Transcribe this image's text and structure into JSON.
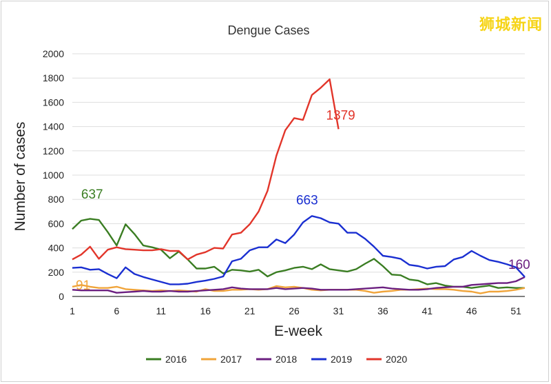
{
  "watermark": "狮城新闻",
  "chart_data": {
    "type": "line",
    "title": "Dengue Cases",
    "xlabel": "E-week",
    "ylabel": "Number of cases",
    "ylim": [
      0,
      2000
    ],
    "xlim": [
      1,
      52
    ],
    "yticks": [
      "0",
      "200",
      "400",
      "600",
      "800",
      "1000",
      "1200",
      "1400",
      "1600",
      "1800",
      "2000"
    ],
    "xticks": [
      "1",
      "6",
      "11",
      "16",
      "21",
      "26",
      "31",
      "36",
      "41",
      "46",
      "51"
    ],
    "grid": true,
    "legend_position": "bottom",
    "series": [
      {
        "name": "2016",
        "color": "#3a7d22",
        "values": [
          555,
          625,
          640,
          630,
          530,
          420,
          595,
          515,
          420,
          405,
          385,
          315,
          370,
          305,
          230,
          230,
          245,
          190,
          220,
          215,
          205,
          220,
          165,
          200,
          215,
          235,
          245,
          225,
          265,
          225,
          215,
          205,
          225,
          270,
          310,
          250,
          180,
          175,
          140,
          130,
          100,
          110,
          90,
          80,
          80,
          70,
          80,
          90,
          70,
          75,
          70,
          70
        ]
      },
      {
        "name": "2017",
        "color": "#f0a43a",
        "values": [
          80,
          95,
          80,
          70,
          70,
          80,
          60,
          55,
          50,
          45,
          50,
          45,
          50,
          45,
          40,
          60,
          45,
          45,
          55,
          55,
          60,
          55,
          60,
          85,
          75,
          80,
          70,
          55,
          50,
          55,
          55,
          55,
          55,
          45,
          30,
          40,
          45,
          55,
          55,
          60,
          65,
          60,
          60,
          55,
          45,
          40,
          25,
          40,
          40,
          45,
          55,
          70
        ]
      },
      {
        "name": "2018",
        "color": "#6b1f80",
        "values": [
          55,
          50,
          50,
          50,
          50,
          30,
          35,
          40,
          45,
          40,
          40,
          45,
          40,
          40,
          45,
          50,
          55,
          60,
          75,
          65,
          60,
          60,
          60,
          70,
          60,
          65,
          70,
          65,
          55,
          55,
          55,
          55,
          60,
          65,
          70,
          75,
          65,
          60,
          55,
          55,
          60,
          70,
          75,
          80,
          80,
          95,
          100,
          105,
          110,
          110,
          125,
          160
        ]
      },
      {
        "name": "2019",
        "color": "#1a2fd1",
        "values": [
          235,
          240,
          220,
          225,
          185,
          150,
          240,
          185,
          160,
          140,
          120,
          100,
          100,
          105,
          120,
          130,
          145,
          165,
          290,
          310,
          380,
          405,
          405,
          470,
          440,
          510,
          610,
          663,
          645,
          610,
          600,
          525,
          525,
          475,
          410,
          335,
          325,
          310,
          260,
          250,
          230,
          245,
          250,
          305,
          325,
          375,
          335,
          300,
          285,
          265,
          240,
          160
        ]
      },
      {
        "name": "2020",
        "color": "#e2352a",
        "values": [
          305,
          345,
          410,
          310,
          385,
          405,
          390,
          385,
          380,
          380,
          390,
          375,
          375,
          305,
          345,
          365,
          400,
          395,
          510,
          525,
          595,
          700,
          870,
          1160,
          1370,
          1470,
          1455,
          1660,
          1720,
          1790,
          1379
        ]
      }
    ],
    "annotations": [
      {
        "text": "637",
        "color": "#3a7d22"
      },
      {
        "text": "91",
        "color": "#f0a43a"
      },
      {
        "text": "663",
        "color": "#1a2fd1"
      },
      {
        "text": "1379",
        "color": "#e2352a"
      },
      {
        "text": "160",
        "color": "#6b1f80"
      }
    ]
  }
}
